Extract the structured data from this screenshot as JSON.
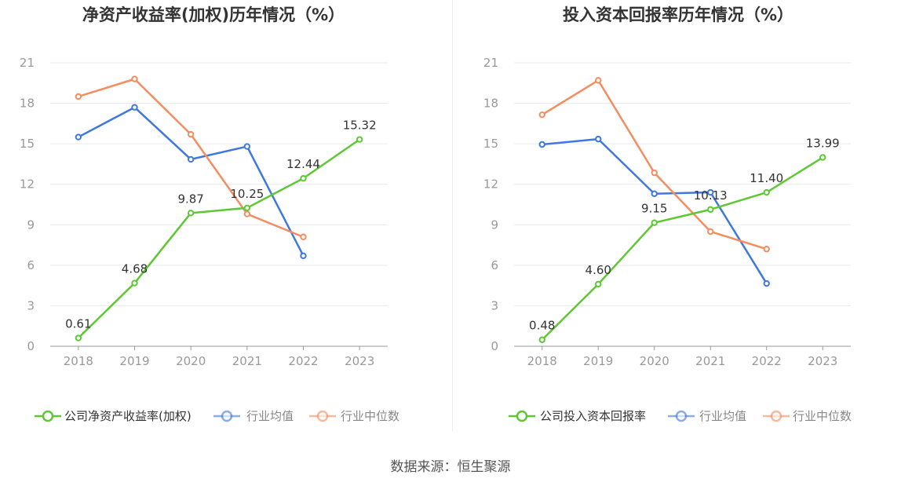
{
  "source_text": "数据来源：恒生聚源",
  "colors": {
    "company": "#5ec834",
    "average": "#3f78e0",
    "median": "#f48d5f",
    "grid": "#e6e9f0",
    "axis": "#999999",
    "tick": "#999999",
    "title": "#333333",
    "label": "#333333"
  },
  "chart_data": [
    {
      "type": "line",
      "title": "净资产收益率(加权)历年情况（%）",
      "categories": [
        "2018",
        "2019",
        "2020",
        "2021",
        "2022",
        "2023"
      ],
      "ylim": [
        0,
        21
      ],
      "yticks": [
        0,
        3,
        6,
        9,
        12,
        15,
        18,
        21
      ],
      "grid": true,
      "legend_position": "bottom",
      "series": [
        {
          "name": "公司净资产收益率(加权)",
          "key": "company",
          "values": [
            0.61,
            4.68,
            9.87,
            10.25,
            12.44,
            15.32
          ],
          "labels": [
            "0.61",
            "4.68",
            "9.87",
            "10.25",
            "12.44",
            "15.32"
          ]
        },
        {
          "name": "行业均值",
          "key": "average",
          "values": [
            15.5,
            17.7,
            13.85,
            14.8,
            6.7,
            null
          ]
        },
        {
          "name": "行业中位数",
          "key": "median",
          "values": [
            18.5,
            19.8,
            15.7,
            9.8,
            8.1,
            null
          ]
        }
      ]
    },
    {
      "type": "line",
      "title": "投入资本回报率历年情况（%）",
      "categories": [
        "2018",
        "2019",
        "2020",
        "2021",
        "2022",
        "2023"
      ],
      "ylim": [
        0,
        21
      ],
      "yticks": [
        0,
        3,
        6,
        9,
        12,
        15,
        18,
        21
      ],
      "grid": true,
      "legend_position": "bottom",
      "series": [
        {
          "name": "公司投入资本回报率",
          "key": "company",
          "values": [
            0.48,
            4.6,
            9.15,
            10.13,
            11.4,
            13.99
          ],
          "labels": [
            "0.48",
            "4.60",
            "9.15",
            "10.13",
            "11.40",
            "13.99"
          ]
        },
        {
          "name": "行业均值",
          "key": "average",
          "values": [
            14.95,
            15.35,
            11.3,
            11.4,
            4.65,
            null
          ]
        },
        {
          "name": "行业中位数",
          "key": "median",
          "values": [
            17.15,
            19.7,
            12.85,
            8.5,
            7.2,
            null
          ]
        }
      ]
    }
  ]
}
